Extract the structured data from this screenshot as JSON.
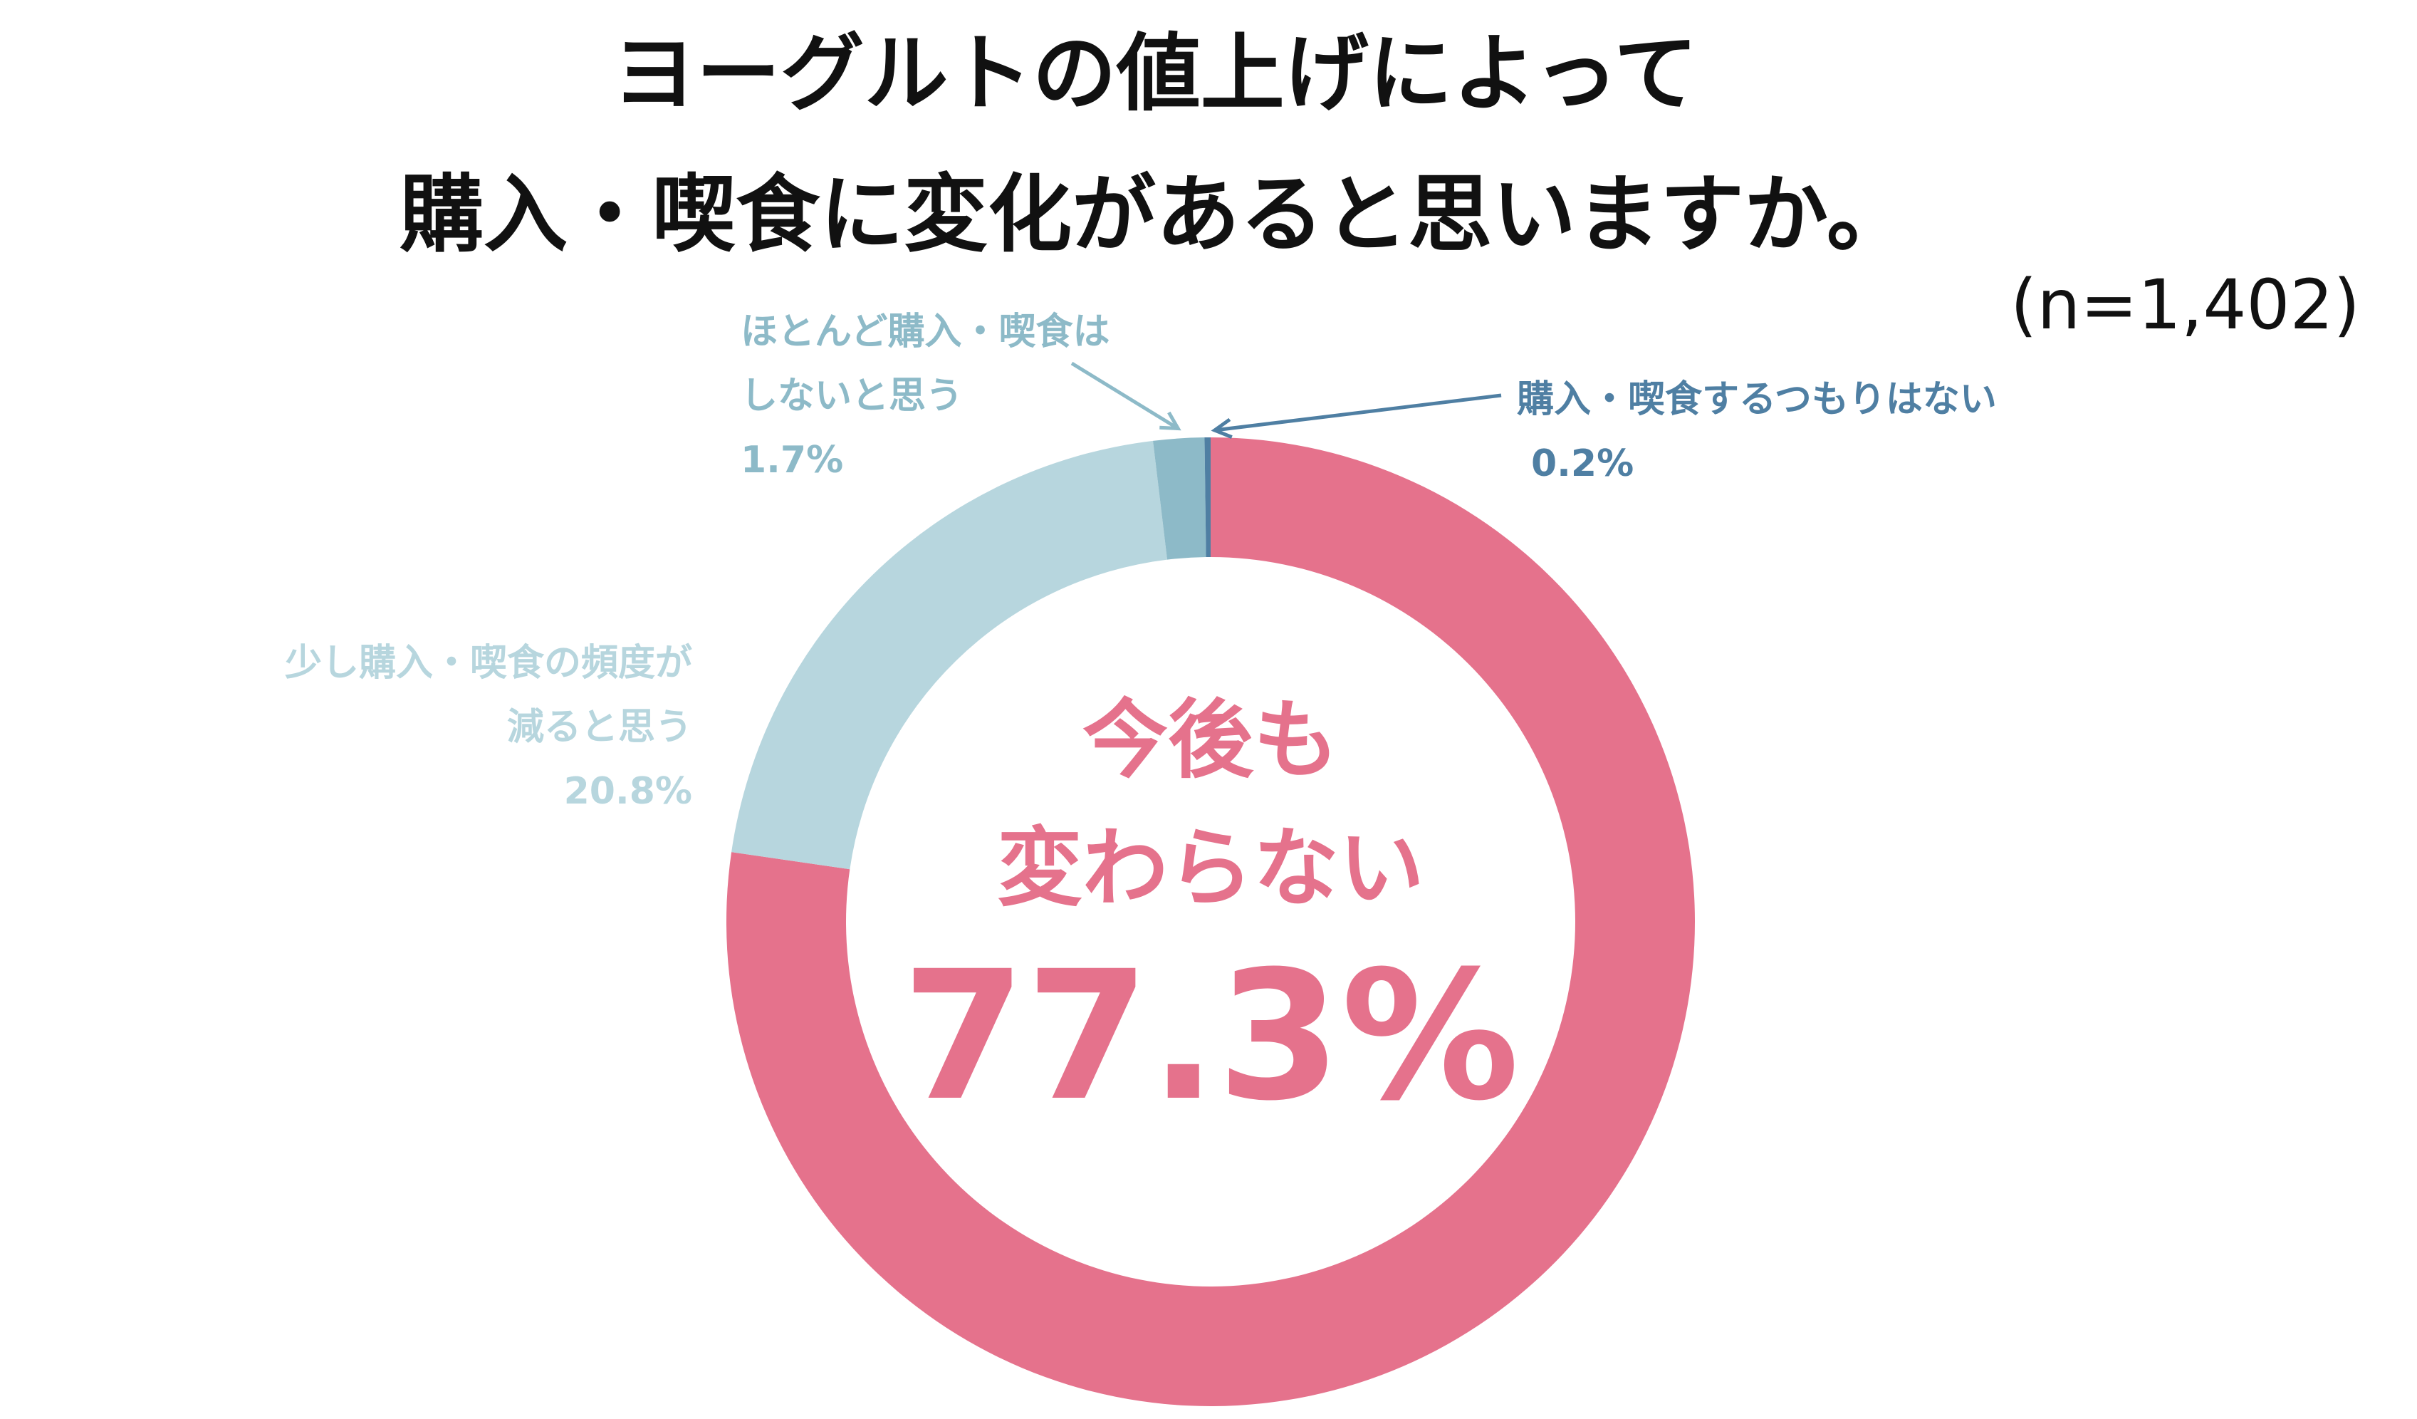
{
  "title": {
    "line1": "ヨーグルトの値上げによって",
    "line2": "購入・喫食に変化があると思いますか。"
  },
  "sample_size": "(n=1,402)",
  "center": {
    "line1": "今後も",
    "line2": "変わらない",
    "value": "77.3%"
  },
  "colors": {
    "unchanged": "#e5728c",
    "reduce": "#b7d6de",
    "almost_none": "#8dbac8",
    "none": "#4f7fa3",
    "title": "#111111"
  },
  "chart_data": {
    "type": "pie",
    "style": "donut",
    "title": "ヨーグルトの値上げによって購入・喫食に変化があると思いますか。",
    "note": "(n=1,402)",
    "slices": [
      {
        "label": "今後も変わらない",
        "value": 77.3,
        "color": "#e5728c"
      },
      {
        "label": "少し購入・喫食の頻度が減ると思う",
        "value": 20.8,
        "color": "#b7d6de"
      },
      {
        "label": "ほとんど購入・喫食はしないと思う",
        "value": 1.7,
        "color": "#8dbac8"
      },
      {
        "label": "購入・喫食するつもりはない",
        "value": 0.2,
        "color": "#4f7fa3"
      }
    ]
  },
  "labels": {
    "reduce": {
      "line1": "少し購入・喫食の頻度が",
      "line2": "減ると思う",
      "pct": "20.8%"
    },
    "almost_none": {
      "line1": "ほとんど購入・喫食は",
      "line2": "しないと思う",
      "pct": "1.7%"
    },
    "none": {
      "line1": "購入・喫食するつもりはない",
      "pct": "0.2%"
    }
  }
}
